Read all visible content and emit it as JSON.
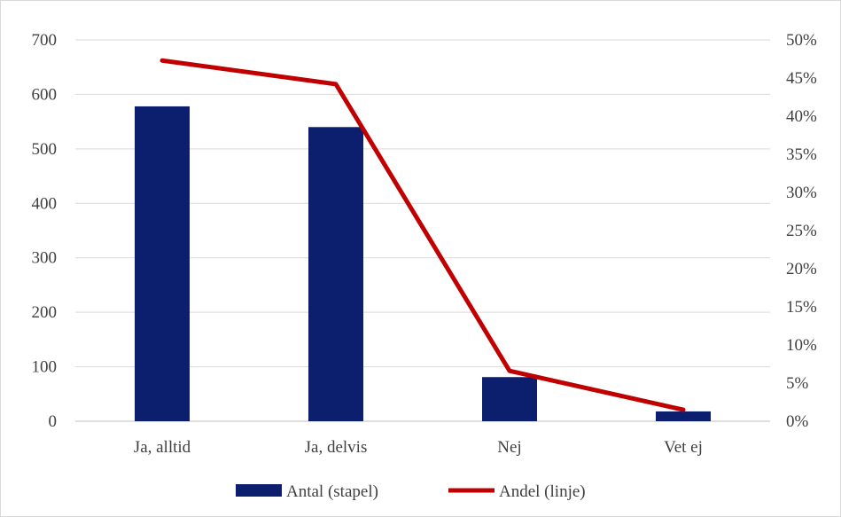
{
  "chart_data": {
    "type": "bar",
    "categories": [
      "Ja, alltid",
      "Ja, delvis",
      "Nej",
      "Vet ej"
    ],
    "series": [
      {
        "name": "Antal (stapel)",
        "type": "bar",
        "axis": "left",
        "values": [
          578,
          540,
          81,
          18
        ],
        "color": "#0c1f6e"
      },
      {
        "name": "Andel (linje)",
        "type": "line",
        "axis": "right",
        "values": [
          0.473,
          0.442,
          0.066,
          0.015
        ],
        "color": "#c00000"
      }
    ],
    "y_left": {
      "ylim": [
        0,
        700
      ],
      "ticks": [
        0,
        100,
        200,
        300,
        400,
        500,
        600,
        700
      ],
      "tick_labels": [
        "0",
        "100",
        "200",
        "300",
        "400",
        "500",
        "600",
        "700"
      ]
    },
    "y_right": {
      "ylim": [
        0,
        0.5
      ],
      "ticks": [
        0,
        0.05,
        0.1,
        0.15,
        0.2,
        0.25,
        0.3,
        0.35,
        0.4,
        0.45,
        0.5
      ],
      "tick_labels": [
        "0%",
        "5%",
        "10%",
        "15%",
        "20%",
        "25%",
        "30%",
        "35%",
        "40%",
        "45%",
        "50%"
      ]
    },
    "grid": true,
    "legend_position": "bottom"
  }
}
